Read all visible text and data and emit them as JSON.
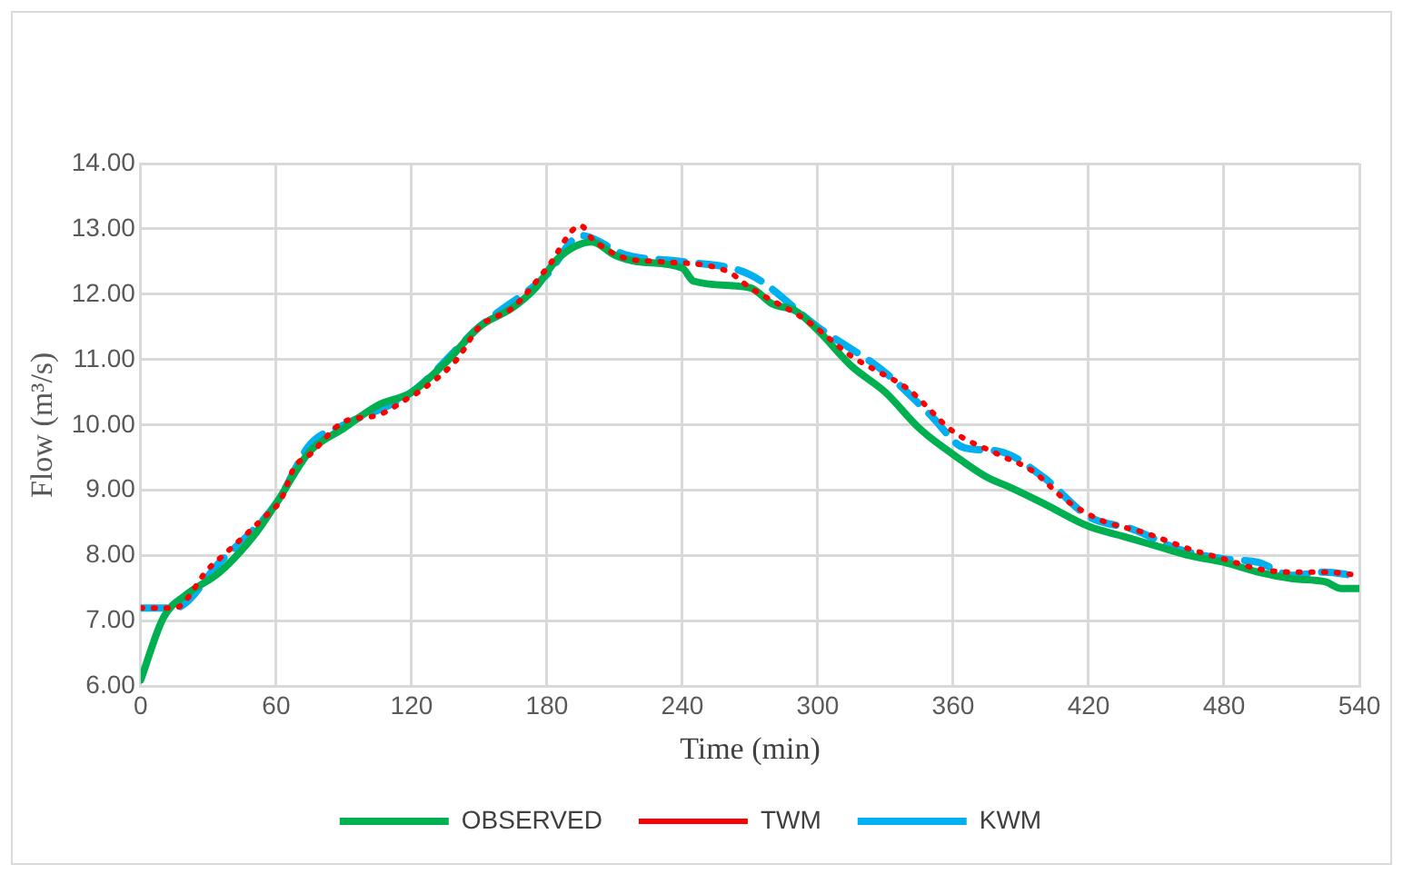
{
  "chart_data": {
    "type": "line",
    "xlabel": "Time (min)",
    "ylabel": "Flow (m³/s)",
    "xlim": [
      0,
      540
    ],
    "xticks": [
      0,
      60,
      120,
      180,
      240,
      300,
      360,
      420,
      480,
      540
    ],
    "ylim": [
      6,
      14
    ],
    "yticks": [
      {
        "value": 6,
        "label": "6.00"
      },
      {
        "value": 7,
        "label": "7.00"
      },
      {
        "value": 8,
        "label": "8.00"
      },
      {
        "value": 9,
        "label": "9.00"
      },
      {
        "value": 10,
        "label": "10.00"
      },
      {
        "value": 11,
        "label": "11.00"
      },
      {
        "value": 12,
        "label": "12.00"
      },
      {
        "value": 13,
        "label": "13.00"
      },
      {
        "value": 14,
        "label": "14.00"
      }
    ],
    "grid": true,
    "legend": "bottom",
    "marker": "none",
    "series": [
      {
        "name": "OBSERVED",
        "color": "#00b050",
        "line_style": "solid",
        "x": [
          0,
          10,
          20,
          35,
          50,
          60,
          75,
          90,
          105,
          120,
          135,
          150,
          165,
          175,
          185,
          200,
          210,
          220,
          240,
          245,
          270,
          280,
          290,
          300,
          315,
          330,
          345,
          360,
          375,
          385,
          400,
          420,
          435,
          450,
          465,
          480,
          495,
          510,
          525,
          532,
          540
        ],
        "values": [
          6.1,
          7.05,
          7.4,
          7.75,
          8.3,
          8.8,
          9.6,
          9.95,
          10.3,
          10.5,
          10.95,
          11.5,
          11.8,
          12.1,
          12.55,
          12.8,
          12.6,
          12.5,
          12.4,
          12.2,
          12.1,
          11.85,
          11.75,
          11.45,
          10.9,
          10.5,
          9.95,
          9.55,
          9.2,
          9.05,
          8.8,
          8.45,
          8.3,
          8.15,
          8.0,
          7.9,
          7.75,
          7.65,
          7.6,
          7.5,
          7.5
        ]
      },
      {
        "name": "TWM",
        "color": "#ff0000",
        "line_style": "dotted",
        "x": [
          0,
          15,
          30,
          38,
          55,
          62,
          68,
          75,
          90,
          105,
          118,
          125,
          140,
          150,
          165,
          180,
          195,
          200,
          215,
          230,
          260,
          270,
          295,
          315,
          325,
          340,
          360,
          380,
          395,
          410,
          425,
          445,
          465,
          480,
          495,
          510,
          525,
          540
        ],
        "values": [
          7.2,
          7.2,
          7.8,
          8.05,
          8.6,
          8.85,
          9.35,
          9.55,
          10.05,
          10.15,
          10.4,
          10.55,
          11.0,
          11.5,
          11.8,
          12.4,
          13.05,
          12.85,
          12.55,
          12.5,
          12.35,
          12.1,
          11.6,
          11.05,
          10.85,
          10.55,
          9.9,
          9.55,
          9.3,
          8.85,
          8.55,
          8.35,
          8.1,
          7.95,
          7.8,
          7.75,
          7.75,
          7.7
        ]
      },
      {
        "name": "KWM",
        "color": "#00b0f0",
        "line_style": "dashed",
        "x": [
          0,
          15,
          35,
          60,
          75,
          90,
          120,
          150,
          180,
          195,
          215,
          240,
          270,
          300,
          330,
          350,
          365,
          380,
          400,
          420,
          440,
          460,
          480,
          495,
          510,
          525,
          537
        ],
        "values": [
          7.2,
          7.2,
          7.9,
          8.8,
          9.7,
          10.0,
          10.5,
          11.5,
          12.3,
          12.9,
          12.6,
          12.5,
          12.3,
          11.5,
          10.8,
          10.15,
          9.65,
          9.6,
          9.2,
          8.6,
          8.4,
          8.1,
          7.95,
          7.9,
          7.7,
          7.75,
          7.7
        ]
      }
    ]
  }
}
